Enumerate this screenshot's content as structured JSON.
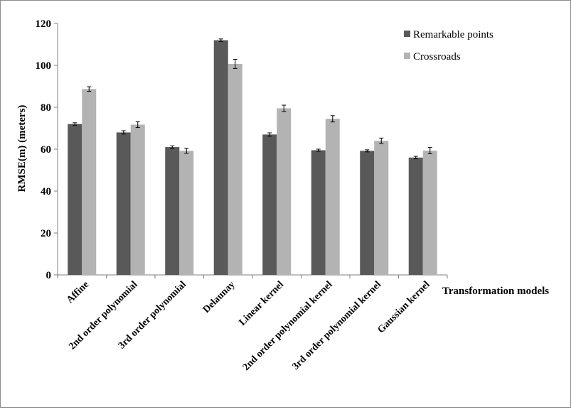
{
  "chart_data": {
    "type": "bar",
    "title": "",
    "xlabel": "Transformation models",
    "ylabel": "RMSE(m) (meters)",
    "ylim": [
      0,
      120
    ],
    "yticks": [
      0,
      20,
      40,
      60,
      80,
      100,
      120
    ],
    "grid": false,
    "legend_position": "top-right",
    "categories": [
      "Affine",
      "2nd order polynomial",
      "3rd order polynomial",
      "Delaunay",
      "Linear kernel",
      "2nd order polynomial kernel",
      "3rd order polynomial kernel",
      "Gaussian kernel"
    ],
    "series": [
      {
        "name": "Remarkable points",
        "color": "#595959",
        "values": [
          72,
          68,
          61,
          112,
          67,
          59.5,
          59.2,
          56
        ],
        "errors": [
          0.6,
          0.8,
          0.6,
          0.6,
          0.8,
          0.5,
          0.5,
          0.6
        ]
      },
      {
        "name": "Crossroads",
        "color": "#b3b3b3",
        "values": [
          88.7,
          71.7,
          59.2,
          100.7,
          79.5,
          74.5,
          64,
          59.3
        ],
        "errors": [
          1.1,
          1.4,
          1.2,
          2.2,
          1.5,
          1.5,
          1.3,
          1.5
        ]
      }
    ]
  }
}
